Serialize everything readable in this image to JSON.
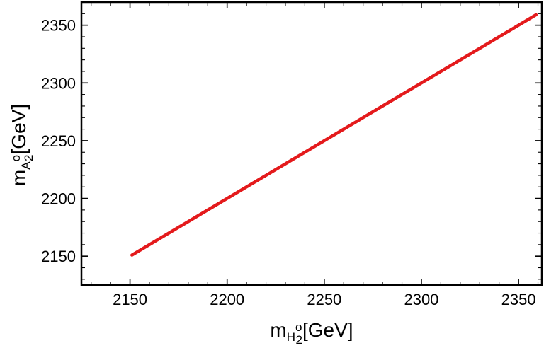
{
  "chart_data": {
    "type": "line",
    "title": "",
    "xlabel": {
      "main": "m",
      "sub": "H",
      "sup": "o",
      "subsub": "2",
      "unit": "[GeV]"
    },
    "ylabel": {
      "main": "m",
      "sub": "A",
      "sup": "o",
      "subsub": "2",
      "unit": "[GeV]"
    },
    "xlim": [
      2125,
      2362
    ],
    "ylim": [
      2125,
      2370
    ],
    "xticks": [
      2150,
      2200,
      2250,
      2300,
      2350
    ],
    "yticks": [
      2150,
      2200,
      2250,
      2300,
      2350
    ],
    "xtick_labels": [
      "2150",
      "2200",
      "2250",
      "2300",
      "2350"
    ],
    "ytick_labels": [
      "2150",
      "2200",
      "2250",
      "2300",
      "2350"
    ],
    "grid": false,
    "series": [
      {
        "color": "#e41a1c",
        "x": [
          2151,
          2359
        ],
        "y": [
          2151,
          2359
        ]
      }
    ]
  }
}
